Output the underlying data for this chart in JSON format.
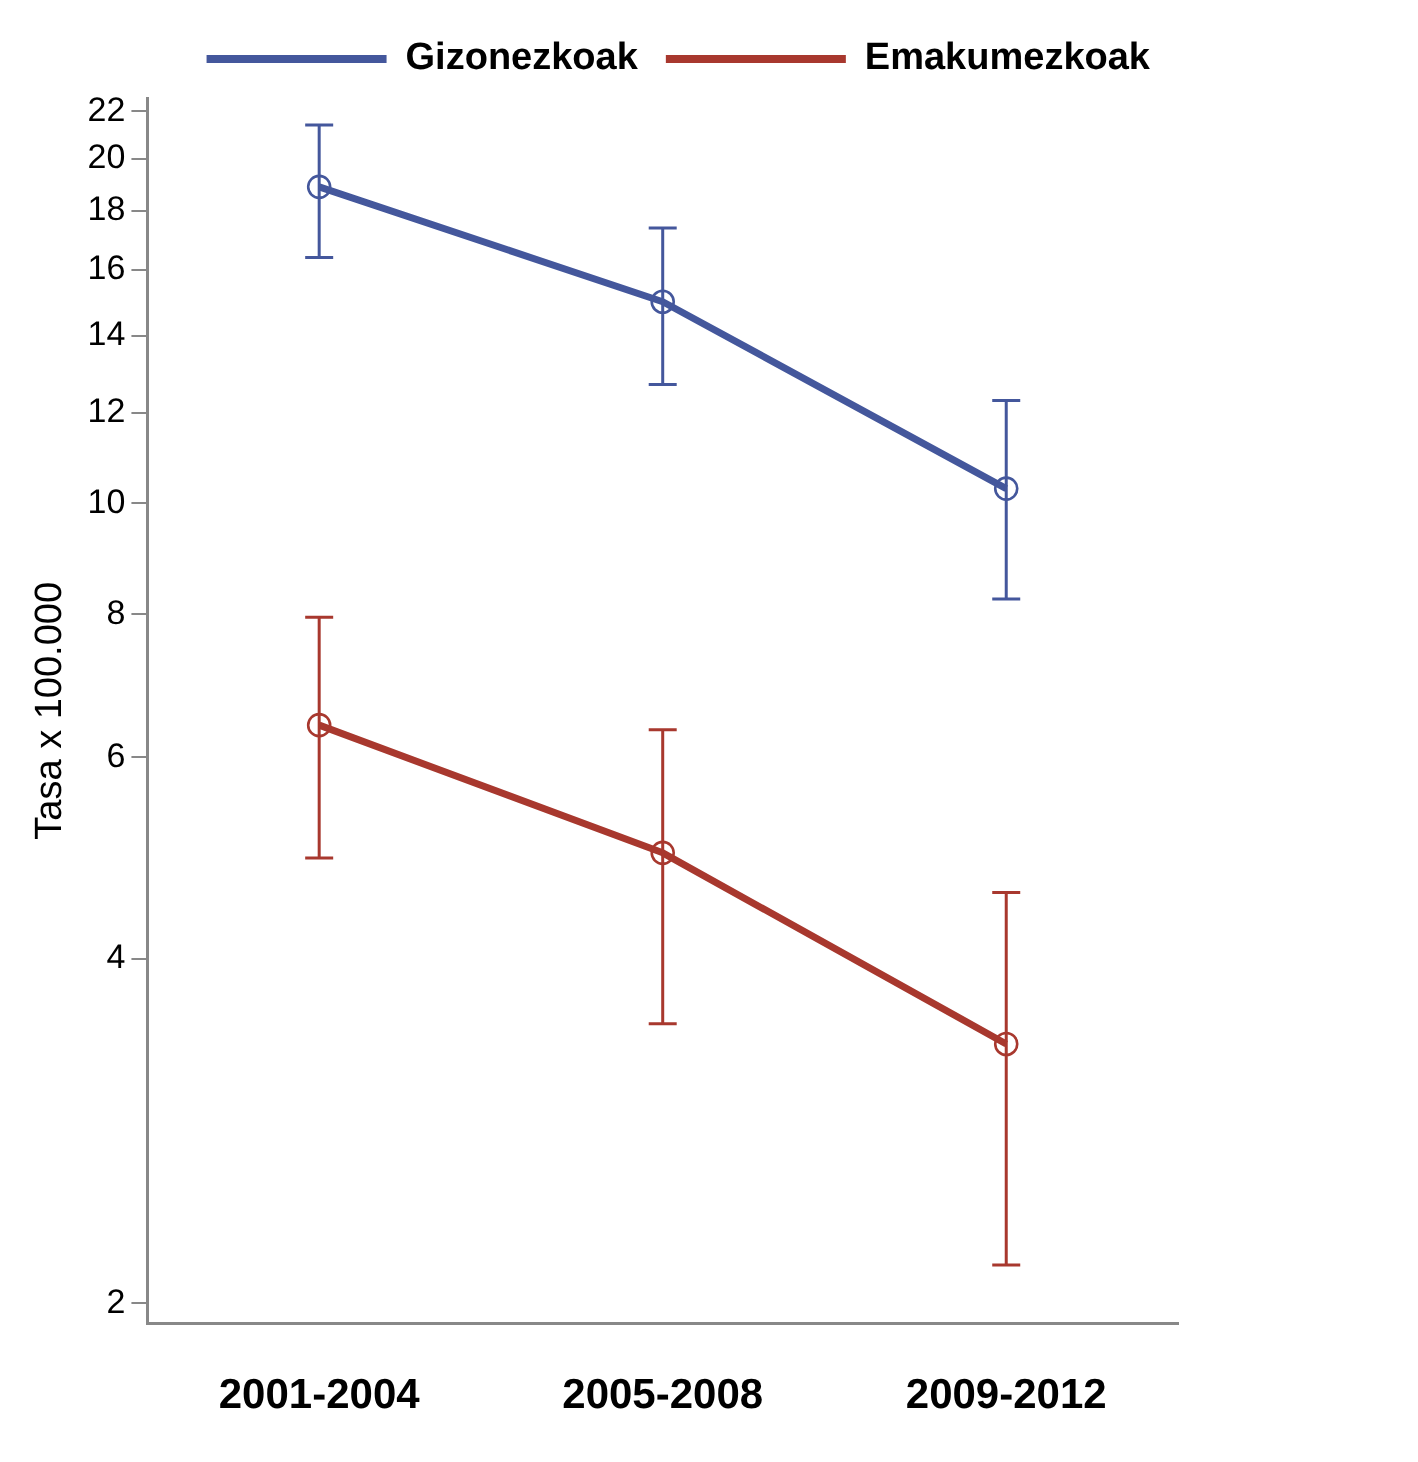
{
  "chart_data": {
    "type": "line",
    "ylabel": "Tasa x 100.000",
    "categories": [
      "2001-2004",
      "2005-2008",
      "2009-2012"
    ],
    "series": [
      {
        "name": "Gizonezkoak",
        "color": "#44579c",
        "values": [
          18.9,
          15.0,
          10.3
        ],
        "errors": [
          [
            16.4,
            21.4
          ],
          [
            12.7,
            17.4
          ],
          [
            8.25,
            12.3
          ]
        ]
      },
      {
        "name": "Emakumezkoak",
        "color": "#a8382e",
        "values": [
          6.4,
          4.95,
          3.37
        ],
        "errors": [
          [
            4.9,
            7.95
          ],
          [
            3.51,
            6.34
          ],
          [
            2.16,
            4.57
          ]
        ]
      }
    ],
    "log": "y",
    "ylim": [
      1.92,
      22.6
    ],
    "yticks": [
      2,
      4,
      6,
      8,
      10,
      12,
      14,
      16,
      18,
      20,
      22
    ],
    "grid": false,
    "legend": "top right",
    "marker": "circle",
    "line_style": "solid"
  }
}
